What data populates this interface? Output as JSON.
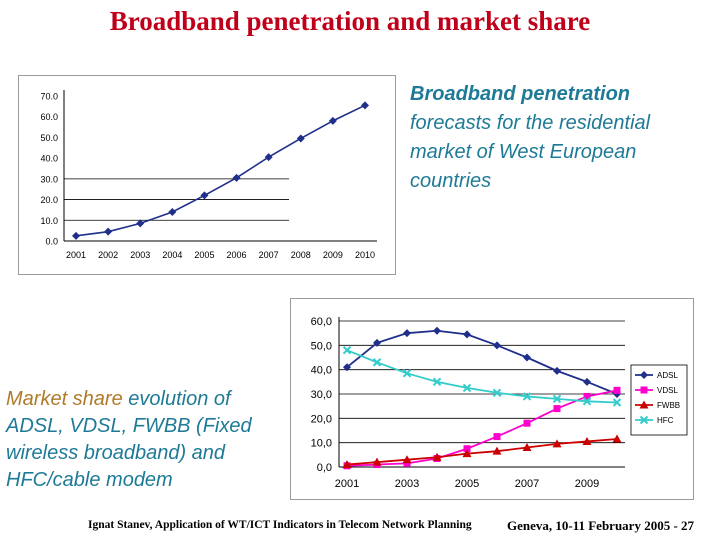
{
  "slide": {
    "title": "Broadband penetration and market share",
    "desc_top_bold": "Broadband penetration",
    "desc_top_rest": "forecasts for the residential market of West European countries",
    "desc_bottom_lead": "Market share",
    "desc_bottom_rest": "evolution of ADSL, VDSL, FWBB (Fixed wireless broadband) and HFC/cable modem",
    "footer_left": "Ignat Stanev, Application of WT/ICT Indicators in Telecom Network Planning",
    "footer_right": "Geneva, 10-11 February 2005 - 27"
  },
  "chart_data": [
    {
      "type": "line",
      "title": "",
      "xlabel": "",
      "ylabel": "",
      "x": [
        "2001",
        "2002",
        "2003",
        "2004",
        "2005",
        "2006",
        "2007",
        "2008",
        "2009",
        "2010"
      ],
      "series": [
        {
          "values": [
            2.5,
            4.5,
            8.5,
            14.0,
            22.0,
            30.5,
            40.5,
            49.5,
            58.0,
            65.5
          ],
          "color": "#1f2f8a",
          "marker": "diamond"
        }
      ],
      "ylim": [
        0,
        70
      ],
      "yticks": [
        "0.0",
        "10.0",
        "20.0",
        "30.0",
        "40.0",
        "50.0",
        "60.0",
        "70.0"
      ],
      "grid": "horizontal",
      "legend": "none"
    },
    {
      "type": "line",
      "title": "",
      "xlabel": "",
      "ylabel": "",
      "x": [
        2001,
        2002,
        2003,
        2004,
        2005,
        2006,
        2007,
        2008,
        2009,
        2010
      ],
      "xticks": [
        "2001",
        "2003",
        "2005",
        "2007",
        "2009"
      ],
      "ylim": [
        0,
        60
      ],
      "yticks": [
        "0,0",
        "10,0",
        "20,0",
        "30,0",
        "40,0",
        "50,0",
        "60,0"
      ],
      "grid": "horizontal",
      "legend": "right",
      "series": [
        {
          "name": "ADSL",
          "values": [
            41,
            51,
            55,
            56,
            54.5,
            50,
            45,
            39.5,
            35,
            30
          ],
          "color": "#1f2f8a",
          "marker": "diamond"
        },
        {
          "name": "VDSL",
          "values": [
            0.5,
            1.0,
            1.5,
            3.5,
            7.5,
            12.5,
            18,
            24,
            29,
            31.5
          ],
          "color": "#ff00cc",
          "marker": "square"
        },
        {
          "name": "FWBB",
          "values": [
            1.0,
            2.0,
            3.0,
            4.0,
            5.5,
            6.5,
            8.0,
            9.5,
            10.5,
            11.5
          ],
          "color": "#cc0000",
          "marker": "triangle"
        },
        {
          "name": "HFC",
          "values": [
            48,
            43,
            38.5,
            35,
            32.5,
            30.5,
            29,
            28,
            27,
            26.5
          ],
          "color": "#33cccc",
          "marker": "x"
        }
      ]
    }
  ]
}
